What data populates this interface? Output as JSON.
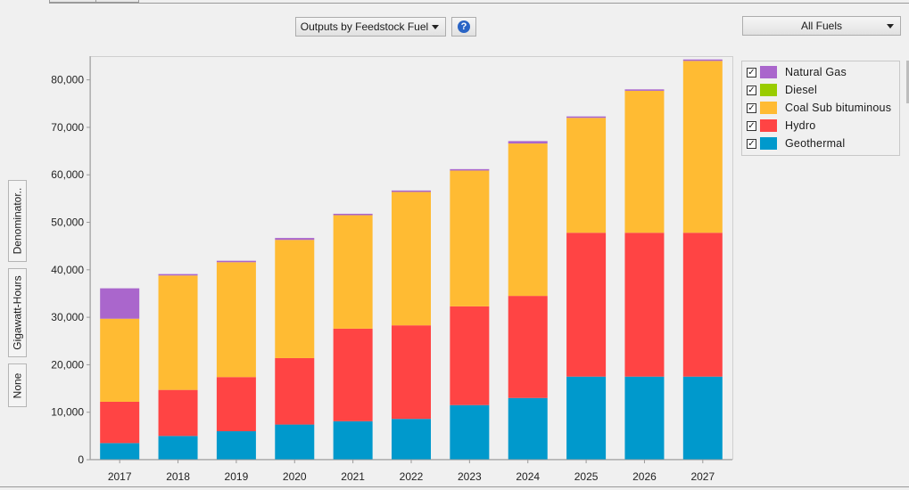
{
  "toolbar": {
    "view_dropdown": "Outputs by Feedstock Fuel",
    "help_icon": "help-icon",
    "fuel_dropdown": "All Fuels"
  },
  "side_buttons": {
    "denominator": "Denominator..",
    "units": "Gigawatt-Hours",
    "normalization": "None"
  },
  "chart_data": {
    "type": "bar",
    "stacked": true,
    "categories": [
      "2017",
      "2018",
      "2019",
      "2020",
      "2021",
      "2022",
      "2023",
      "2024",
      "2025",
      "2026",
      "2027"
    ],
    "series": [
      {
        "name": "Geothermal",
        "color": "#0099cc",
        "values": [
          3500,
          5000,
          6000,
          7400,
          8100,
          8600,
          11500,
          13000,
          17500,
          17500,
          17500
        ]
      },
      {
        "name": "Hydro",
        "color": "#ff4444",
        "values": [
          8700,
          9700,
          11400,
          14000,
          19500,
          19700,
          20800,
          21500,
          30300,
          30300,
          30300
        ]
      },
      {
        "name": "Coal Sub bituminous",
        "color": "#ffbb33",
        "values": [
          17500,
          24100,
          24200,
          24900,
          23900,
          28100,
          28600,
          32100,
          24200,
          29900,
          36200
        ]
      },
      {
        "name": "Diesel",
        "color": "#99cc00",
        "values": [
          0,
          0,
          0,
          0,
          0,
          0,
          0,
          0,
          0,
          0,
          0
        ]
      },
      {
        "name": "Natural Gas",
        "color": "#aa66cc",
        "values": [
          6400,
          300,
          300,
          400,
          300,
          300,
          300,
          500,
          300,
          300,
          300
        ]
      }
    ],
    "ylim": [
      0,
      85000
    ],
    "yticks": [
      0,
      10000,
      20000,
      30000,
      40000,
      50000,
      60000,
      70000,
      80000
    ],
    "ytick_labels": [
      "0",
      "10,000",
      "20,000",
      "30,000",
      "40,000",
      "50,000",
      "60,000",
      "70,000",
      "80,000"
    ],
    "legend_position": "top-right",
    "legend_order": [
      "Natural Gas",
      "Diesel",
      "Coal Sub bituminous",
      "Hydro",
      "Geothermal"
    ],
    "grid": false
  }
}
